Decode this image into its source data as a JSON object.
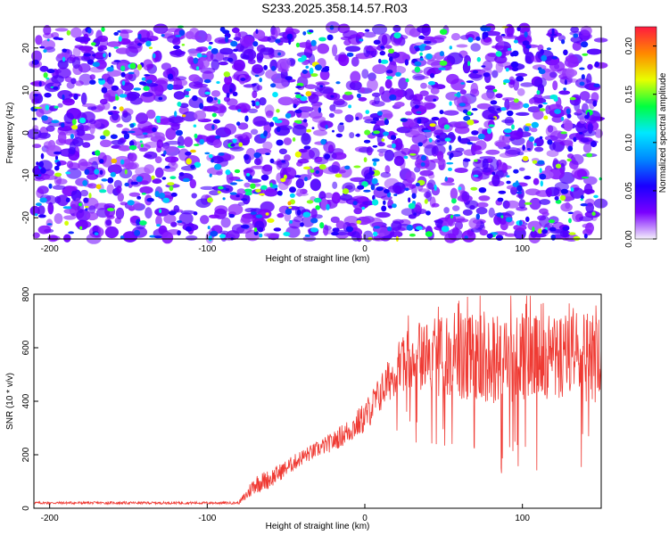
{
  "title": "S233.2025.358.14.57.R03",
  "chart_data": [
    {
      "type": "heatmap",
      "title": "S233.2025.358.14.57.R03",
      "xlabel": "Height of straight line (km)",
      "ylabel": "Frequency (Hz)",
      "xlim": [
        -210,
        150
      ],
      "ylim": [
        -25,
        25
      ],
      "x_ticks": [
        -200,
        -100,
        0,
        100
      ],
      "x_tick_labels": [
        "-200",
        "-100",
        "0",
        "100"
      ],
      "y_ticks": [
        -20,
        -10,
        0,
        10,
        20
      ],
      "y_tick_labels": [
        "-20",
        "-10",
        "0",
        "10",
        "20"
      ],
      "colorbar": {
        "label": "Normalized spectral amplitude",
        "range": [
          0,
          0.22
        ],
        "ticks": [
          0,
          0.05,
          0.1,
          0.15,
          0.2
        ],
        "tick_labels": [
          "0.00",
          "0.05",
          "0.10",
          "0.15",
          "0.20"
        ],
        "colors": [
          "#f4f0fb",
          "#7a00ff",
          "#1a00ff",
          "#0088ff",
          "#00e8ff",
          "#00ff40",
          "#e8ff00",
          "#ff8800",
          "#ff1a40"
        ]
      },
      "description_values": "dense speckled amplitude field, mostly 0.00-0.08 with isolated peaks up to ~0.17"
    },
    {
      "type": "line",
      "xlabel": "Height of straight line (km)",
      "ylabel": "SNR (10 * v/v)",
      "xlim": [
        -210,
        150
      ],
      "ylim": [
        0,
        800
      ],
      "x_ticks": [
        -200,
        -100,
        0,
        100
      ],
      "x_tick_labels": [
        "-200",
        "-100",
        "0",
        "100"
      ],
      "y_ticks": [
        0,
        200,
        400,
        600,
        800
      ],
      "y_tick_labels": [
        "0",
        "200",
        "400",
        "600",
        "800"
      ],
      "color": "#ef3a33",
      "envelope": {
        "x": [
          -210,
          -80,
          -75,
          -70,
          -60,
          -50,
          -40,
          -30,
          -20,
          -10,
          0,
          10,
          20,
          30,
          50,
          80,
          110,
          130,
          150
        ],
        "mean": [
          20,
          20,
          50,
          90,
          110,
          150,
          190,
          220,
          250,
          290,
          340,
          430,
          520,
          570,
          570,
          560,
          560,
          570,
          560
        ],
        "amp": [
          8,
          8,
          40,
          60,
          60,
          50,
          50,
          50,
          60,
          80,
          100,
          120,
          150,
          200,
          260,
          280,
          280,
          280,
          280
        ]
      }
    }
  ]
}
